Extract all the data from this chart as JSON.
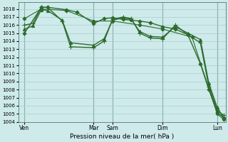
{
  "background_color": "#ceeaea",
  "grid_color": "#aacccc",
  "line_color": "#2d6b2d",
  "xlabel": "Pression niveau de la mer( hPa )",
  "ylim": [
    1004,
    1018.8
  ],
  "yticks": [
    1004,
    1005,
    1006,
    1007,
    1008,
    1009,
    1010,
    1011,
    1012,
    1013,
    1014,
    1015,
    1016,
    1017,
    1018
  ],
  "xtick_labels": [
    "Ven",
    "",
    "Mar",
    "Sam",
    "",
    "Dim",
    "",
    "Lun"
  ],
  "xtick_show": [
    "Ven",
    "Mar",
    "Sam",
    "Dim",
    "Lun"
  ],
  "xtick_show_pos": [
    0,
    3.3,
    4.2,
    6.6,
    9.2
  ],
  "xlim": [
    -0.3,
    9.6
  ],
  "series": [
    {
      "x": [
        0,
        0.8,
        1.1,
        2.0,
        2.5,
        3.3,
        3.8,
        4.2,
        4.7,
        5.1,
        5.5,
        6.0,
        6.6,
        7.2,
        7.8,
        8.4,
        8.8,
        9.2,
        9.5
      ],
      "y": [
        1015.0,
        1018.2,
        1018.2,
        1017.9,
        1017.6,
        1016.2,
        1016.8,
        1016.9,
        1016.7,
        1016.6,
        1016.5,
        1016.3,
        1015.8,
        1015.5,
        1014.8,
        1011.2,
        1008.0,
        1005.2,
        1004.5
      ],
      "marker": "D",
      "markersize": 2.5,
      "lw": 1.0
    },
    {
      "x": [
        0,
        0.4,
        0.8,
        1.1,
        1.8,
        2.2,
        3.3,
        3.8,
        4.2,
        4.7,
        5.1,
        5.5,
        6.0,
        6.6,
        7.2,
        7.8,
        8.4,
        8.8,
        9.2,
        9.5
      ],
      "y": [
        1016.0,
        1016.2,
        1018.2,
        1018.2,
        1016.5,
        1013.3,
        1013.2,
        1014.0,
        1016.7,
        1017.0,
        1016.8,
        1015.0,
        1014.4,
        1014.3,
        1016.0,
        1014.8,
        1013.8,
        1008.4,
        1005.5,
        1004.8
      ],
      "marker": "+",
      "markersize": 4,
      "lw": 1.0
    },
    {
      "x": [
        0,
        0.4,
        0.8,
        1.1,
        1.8,
        2.2,
        3.3,
        3.8,
        4.2,
        4.7,
        5.1,
        5.5,
        6.0,
        6.6,
        7.2,
        7.8,
        8.4,
        8.8,
        9.2,
        9.5
      ],
      "y": [
        1015.5,
        1015.9,
        1017.9,
        1017.8,
        1016.6,
        1013.8,
        1013.5,
        1014.3,
        1016.6,
        1016.9,
        1016.7,
        1015.2,
        1014.6,
        1014.5,
        1015.8,
        1015.0,
        1014.2,
        1008.8,
        1005.8,
        1004.5
      ],
      "marker": "^",
      "markersize": 3,
      "lw": 1.0
    },
    {
      "x": [
        0,
        0.8,
        2.0,
        3.3,
        4.2,
        5.5,
        6.6,
        8.0,
        9.2,
        9.5
      ],
      "y": [
        1016.8,
        1018.0,
        1017.8,
        1016.5,
        1016.5,
        1016.0,
        1015.5,
        1014.5,
        1005.0,
        1004.3
      ],
      "marker": "D",
      "markersize": 2.5,
      "lw": 0.8
    }
  ]
}
